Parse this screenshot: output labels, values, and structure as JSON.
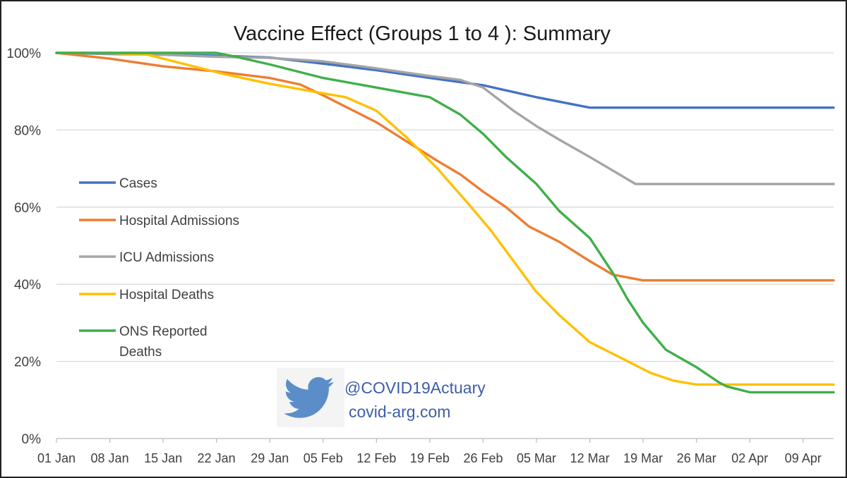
{
  "chart_data": {
    "type": "line",
    "title": "Vaccine Effect (Groups 1 to 4 ): Summary",
    "xlabel": "",
    "ylabel": "",
    "ylim": [
      0,
      100
    ],
    "yticks": [
      "0%",
      "20%",
      "40%",
      "60%",
      "80%",
      "100%"
    ],
    "ytick_values": [
      0,
      20,
      40,
      60,
      80,
      100
    ],
    "xlim": [
      0,
      102
    ],
    "categories": [
      "01 Jan",
      "08 Jan",
      "15 Jan",
      "22 Jan",
      "29 Jan",
      "05 Feb",
      "12 Feb",
      "19 Feb",
      "26 Feb",
      "05 Mar",
      "12 Mar",
      "19 Mar",
      "26 Mar",
      "02 Apr",
      "09 Apr"
    ],
    "grid": "horizontal",
    "legend_position": "left",
    "series": [
      {
        "name": "Cases",
        "color": "#4472c4",
        "points": [
          [
            0,
            100
          ],
          [
            7,
            99.7
          ],
          [
            14,
            99.5
          ],
          [
            21,
            99.3
          ],
          [
            28,
            98.8
          ],
          [
            35,
            97.2
          ],
          [
            42,
            95.5
          ],
          [
            49,
            93.5
          ],
          [
            56,
            91.6
          ],
          [
            63,
            88.5
          ],
          [
            70,
            85.8
          ],
          [
            77,
            85.8
          ],
          [
            84,
            85.8
          ],
          [
            91,
            85.8
          ],
          [
            98,
            85.8
          ],
          [
            102,
            85.8
          ]
        ]
      },
      {
        "name": "Hospital Admissions",
        "color": "#ed7d31",
        "points": [
          [
            0,
            100
          ],
          [
            7,
            98.5
          ],
          [
            14,
            96.5
          ],
          [
            21,
            95.2
          ],
          [
            28,
            93.5
          ],
          [
            32,
            91.8
          ],
          [
            35,
            89
          ],
          [
            38,
            86
          ],
          [
            42,
            82
          ],
          [
            46,
            77
          ],
          [
            50,
            72
          ],
          [
            53,
            68.5
          ],
          [
            56,
            64
          ],
          [
            59,
            60
          ],
          [
            62,
            55
          ],
          [
            66,
            51
          ],
          [
            70,
            46
          ],
          [
            73,
            42.5
          ],
          [
            77,
            41
          ],
          [
            84,
            41
          ],
          [
            91,
            41
          ],
          [
            98,
            41
          ],
          [
            102,
            41
          ]
        ]
      },
      {
        "name": "ICU Admissions",
        "color": "#a5a5a5",
        "points": [
          [
            0,
            100
          ],
          [
            7,
            99.8
          ],
          [
            14,
            99.5
          ],
          [
            21,
            99
          ],
          [
            28,
            98.7
          ],
          [
            35,
            97.8
          ],
          [
            42,
            96
          ],
          [
            49,
            94
          ],
          [
            53,
            93
          ],
          [
            56,
            91
          ],
          [
            60,
            85
          ],
          [
            63,
            81
          ],
          [
            66,
            77.5
          ],
          [
            70,
            73
          ],
          [
            73,
            69.5
          ],
          [
            76,
            66
          ],
          [
            84,
            66
          ],
          [
            91,
            66
          ],
          [
            98,
            66
          ],
          [
            102,
            66
          ]
        ]
      },
      {
        "name": "Hospital Deaths",
        "color": "#ffc000",
        "points": [
          [
            0,
            100
          ],
          [
            7,
            100
          ],
          [
            12,
            99.5
          ],
          [
            17,
            97
          ],
          [
            22,
            94.5
          ],
          [
            28,
            92
          ],
          [
            35,
            89.5
          ],
          [
            38,
            88.5
          ],
          [
            42,
            85
          ],
          [
            46,
            78
          ],
          [
            50,
            70
          ],
          [
            54,
            61
          ],
          [
            57,
            54
          ],
          [
            60,
            46
          ],
          [
            63,
            38
          ],
          [
            66,
            32
          ],
          [
            70,
            25
          ],
          [
            74,
            21
          ],
          [
            78,
            17
          ],
          [
            81,
            15
          ],
          [
            84,
            14
          ],
          [
            91,
            14
          ],
          [
            98,
            14
          ],
          [
            102,
            14
          ]
        ]
      },
      {
        "name": "ONS Reported Deaths",
        "color": "#3faf4a",
        "points": [
          [
            0,
            100
          ],
          [
            7,
            100
          ],
          [
            14,
            100
          ],
          [
            21,
            100
          ],
          [
            24,
            98.8
          ],
          [
            28,
            97
          ],
          [
            32,
            95
          ],
          [
            35,
            93.5
          ],
          [
            42,
            91
          ],
          [
            49,
            88.5
          ],
          [
            53,
            84
          ],
          [
            56,
            79
          ],
          [
            59,
            73
          ],
          [
            63,
            66
          ],
          [
            66,
            59
          ],
          [
            70,
            52
          ],
          [
            73,
            43
          ],
          [
            75,
            36
          ],
          [
            77,
            30
          ],
          [
            80,
            23
          ],
          [
            84,
            18.5
          ],
          [
            87,
            14.5
          ],
          [
            88,
            13.5
          ],
          [
            91,
            12
          ],
          [
            98,
            12
          ],
          [
            102,
            12
          ]
        ]
      }
    ]
  },
  "watermark": {
    "icon": "twitter-bird-icon",
    "handle": "@COVID19Actuary",
    "site": "covid-arg.com",
    "color": "#3d5fa6",
    "icon_color": "#5b8ec8"
  }
}
